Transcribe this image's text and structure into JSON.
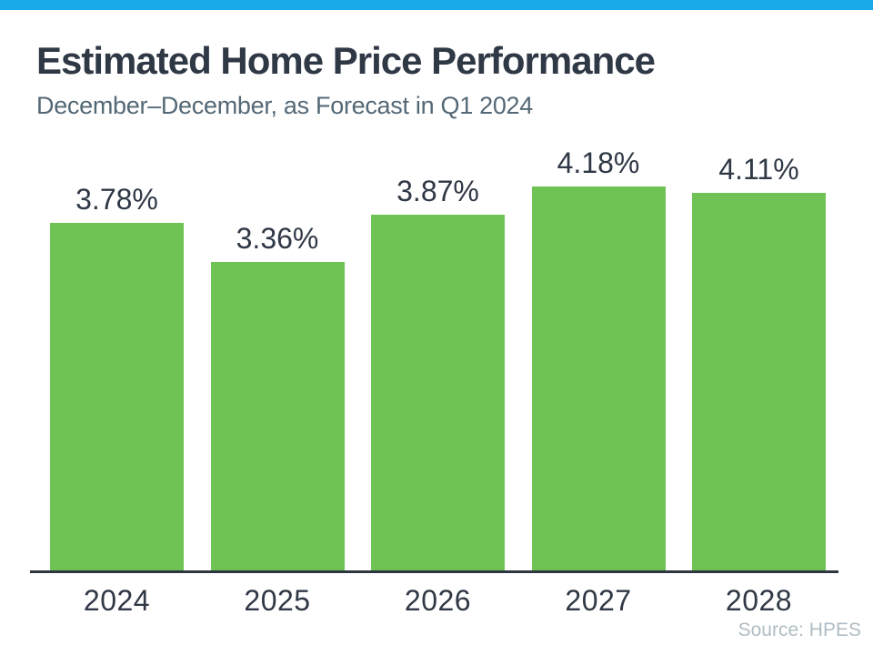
{
  "header": {
    "title": "Estimated Home Price Performance",
    "subtitle": "December–December, as Forecast in Q1 2024"
  },
  "chart_data": {
    "type": "bar",
    "categories": [
      "2024",
      "2025",
      "2026",
      "2027",
      "2028"
    ],
    "values": [
      3.78,
      3.36,
      3.87,
      4.18,
      4.11
    ],
    "value_labels": [
      "3.78%",
      "3.36%",
      "3.87%",
      "4.18%",
      "4.11%"
    ],
    "title": "Estimated Home Price Performance",
    "subtitle": "December–December, as Forecast in Q1 2024",
    "xlabel": "",
    "ylabel": "",
    "ylim": [
      0,
      4.64
    ],
    "grid": false,
    "legend": false,
    "bar_color": "#6FC355",
    "annotation_position": "above-bars",
    "source": "Source: HPES"
  },
  "footer": {
    "source": "Source: HPES"
  },
  "colors": {
    "accent_bar": "#17A9E9",
    "bar_green": "#6FC355",
    "title_text": "#2F3845",
    "subtitle_text": "#546876",
    "axis_line": "#2E3740",
    "source_text": "#AFBDC4",
    "background": "#FFFFFF"
  }
}
